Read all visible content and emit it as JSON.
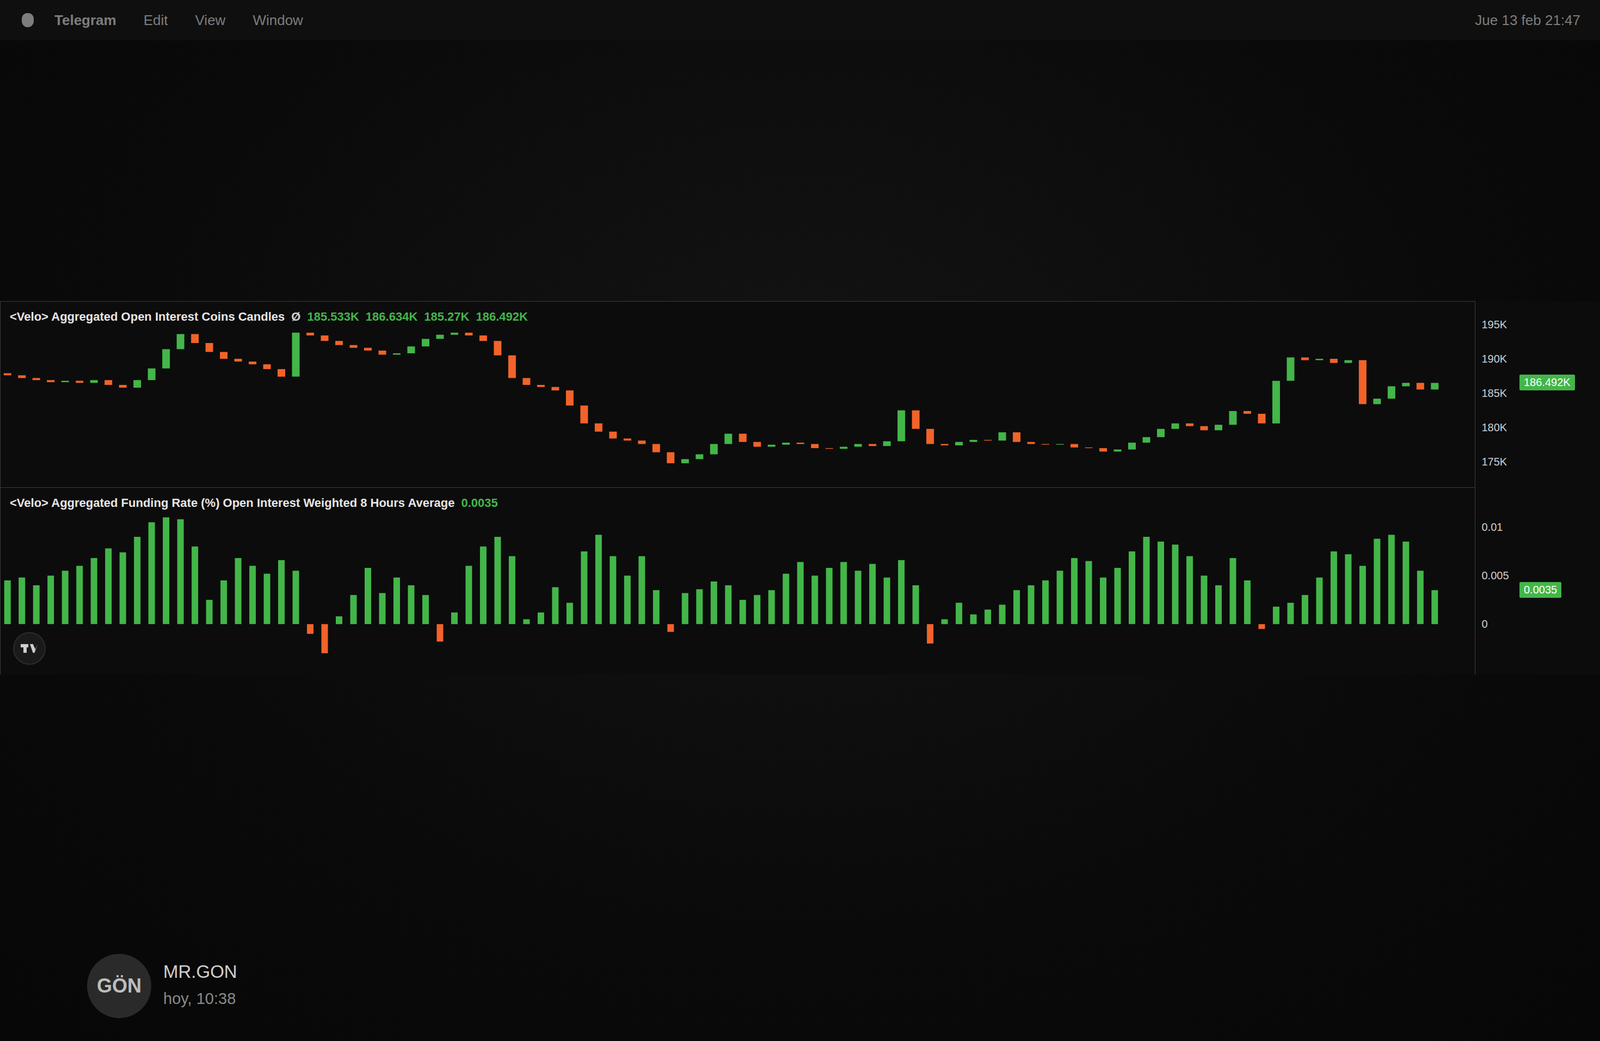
{
  "menu_bar": {
    "app": "Telegram",
    "items": [
      "Edit",
      "View",
      "Window"
    ],
    "clock": "Jue 13 feb 21:47"
  },
  "chart_data": [
    {
      "type": "candlestick",
      "title": "<Velo> Aggregated Open Interest Coins Candles",
      "header_symbol": "Ø",
      "header_values": [
        {
          "value": 185533,
          "label": "185.533K"
        },
        {
          "value": 186634,
          "label": "186.634K"
        },
        {
          "value": 185270,
          "label": "185.27K"
        },
        {
          "value": 186492,
          "label": "186.492K"
        }
      ],
      "open": [
        187900,
        187600,
        187200,
        186900,
        186600,
        186800,
        186500,
        186900,
        186200,
        185800,
        186900,
        188600,
        191400,
        193600,
        192300,
        191000,
        190000,
        189600,
        189200,
        188500,
        187400,
        193800,
        193400,
        192600,
        192000,
        191600,
        191200,
        190600,
        190800,
        191800,
        192900,
        193500,
        193800,
        193400,
        192600,
        190500,
        187200,
        186200,
        185900,
        185400,
        183200,
        180600,
        179400,
        178400,
        178100,
        177600,
        176400,
        174800,
        175400,
        176100,
        177600,
        179100,
        177900,
        177200,
        177500,
        177800,
        177600,
        177000,
        176900,
        177200,
        177600,
        177300,
        178000,
        182500,
        179800,
        177600,
        177400,
        177900,
        178200,
        178100,
        179300,
        177900,
        177600,
        177500,
        177600,
        177100,
        177000,
        176500,
        176800,
        177800,
        178600,
        179800,
        180600,
        180200,
        179600,
        180400,
        182400,
        182000,
        180600,
        186800,
        190200,
        189800,
        190000,
        189400,
        189800,
        183400,
        184200,
        186000,
        186500,
        185533
      ],
      "close": [
        187600,
        187200,
        186900,
        186600,
        186800,
        186500,
        186900,
        186200,
        185800,
        186900,
        188600,
        191400,
        193600,
        192300,
        191000,
        190000,
        189600,
        189200,
        188500,
        187400,
        193800,
        193400,
        192600,
        192000,
        191600,
        191200,
        190600,
        190800,
        191800,
        192900,
        193500,
        193800,
        193400,
        192600,
        190500,
        187200,
        186200,
        185900,
        185400,
        183200,
        180600,
        179400,
        178400,
        178100,
        177600,
        176400,
        174800,
        175400,
        176100,
        177600,
        179100,
        177900,
        177200,
        177500,
        177800,
        177600,
        177000,
        176900,
        177200,
        177600,
        177300,
        178000,
        182500,
        179800,
        177600,
        177400,
        177900,
        178200,
        178100,
        179300,
        177900,
        177600,
        177500,
        177600,
        177100,
        177000,
        176500,
        176800,
        177800,
        178600,
        179800,
        180600,
        180200,
        179600,
        180400,
        182400,
        182000,
        180600,
        186800,
        190200,
        189800,
        190000,
        189400,
        189800,
        183400,
        184200,
        186000,
        186500,
        185533,
        186492
      ],
      "color": {
        "up": "#43b649",
        "down": "#f2632a"
      },
      "xlim": [
        -0.5,
        101.8
      ],
      "ylim": [
        171300,
        198400
      ],
      "yticks": [
        {
          "value": 175000,
          "label": "175K"
        },
        {
          "value": 180000,
          "label": "180K"
        },
        {
          "value": 185000,
          "label": "185K"
        },
        {
          "value": 190000,
          "label": "190K"
        },
        {
          "value": 195000,
          "label": "195K"
        }
      ],
      "last_value": {
        "value": 186492,
        "label": "186.492K"
      },
      "tick_labels": "y",
      "grid": false
    },
    {
      "type": "bar",
      "title": "<Velo> Aggregated Funding Rate (%) Open Interest Weighted 8 Hours Average",
      "header_values": [
        0.0035
      ],
      "values": [
        0.0045,
        0.0048,
        0.004,
        0.005,
        0.0055,
        0.006,
        0.0068,
        0.0078,
        0.0074,
        0.009,
        0.0105,
        0.011,
        0.0108,
        0.008,
        0.0025,
        0.0045,
        0.0068,
        0.006,
        0.0052,
        0.0066,
        0.0055,
        -0.001,
        -0.003,
        0.0008,
        0.003,
        0.0058,
        0.0032,
        0.0048,
        0.004,
        0.003,
        -0.0018,
        0.0012,
        0.006,
        0.008,
        0.009,
        0.007,
        0.0005,
        0.0012,
        0.0038,
        0.0022,
        0.0075,
        0.0092,
        0.007,
        0.005,
        0.007,
        0.0035,
        -0.0008,
        0.0032,
        0.0036,
        0.0044,
        0.004,
        0.0025,
        0.003,
        0.0035,
        0.0052,
        0.0064,
        0.005,
        0.0058,
        0.0064,
        0.0055,
        0.0062,
        0.0048,
        0.0066,
        0.004,
        -0.002,
        0.0005,
        0.0022,
        0.001,
        0.0015,
        0.002,
        0.0035,
        0.004,
        0.0045,
        0.0055,
        0.0068,
        0.0065,
        0.0048,
        0.0058,
        0.0075,
        0.009,
        0.0085,
        0.0082,
        0.007,
        0.005,
        0.004,
        0.0068,
        0.0045,
        -0.0005,
        0.0018,
        0.0022,
        0.003,
        0.0048,
        0.0075,
        0.0072,
        0.006,
        0.0088,
        0.0092,
        0.0085,
        0.0055,
        0.0035
      ],
      "color": {
        "up": "#43b649",
        "down": "#f2632a"
      },
      "xlim": [
        -0.5,
        101.8
      ],
      "ylim": [
        -0.0052,
        0.0141
      ],
      "yticks": [
        0,
        0.005,
        0.01
      ],
      "last_value": 0.0035,
      "tick_labels": "y",
      "grid": false
    }
  ],
  "viewer": {
    "avatar_text": "GÖN",
    "sender": "MR.GON",
    "time": "hoy, 10:38"
  }
}
